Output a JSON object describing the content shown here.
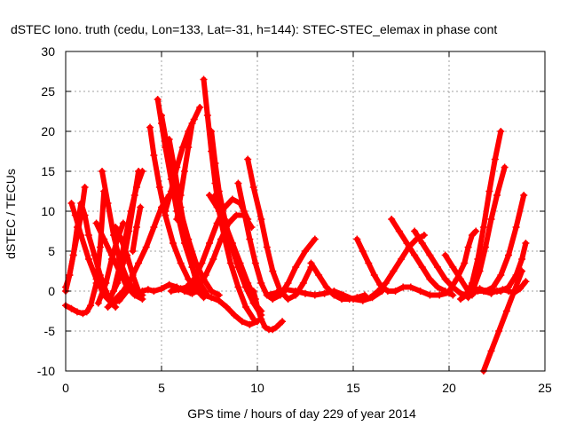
{
  "chart_data": {
    "type": "line",
    "title": "dSTEC Iono. truth (cedu, Lon=133, Lat=-31, h=144): STEC-STEC_elemax in phase cont",
    "xlabel": "GPS time / hours of day 229 of year 2014",
    "ylabel": "dSTEC  / TECUs",
    "xlim": [
      0,
      25
    ],
    "ylim": [
      -10,
      30
    ],
    "xticks": [
      0,
      5,
      10,
      15,
      20,
      25
    ],
    "yticks": [
      -10,
      -5,
      0,
      5,
      10,
      15,
      20,
      25,
      30
    ],
    "grid": true,
    "legend": "none",
    "color": "#ff0000",
    "marker": "plus",
    "series": [
      {
        "x": [
          0.0,
          0.3,
          0.6,
          0.9,
          1.1,
          1.3,
          1.6,
          1.8,
          2.0
        ],
        "y": [
          -1.8,
          -2.2,
          -2.6,
          -2.8,
          -2.6,
          -1.8,
          1.0,
          5.5,
          12.5
        ]
      },
      {
        "x": [
          0.0,
          0.2,
          0.4,
          0.6,
          0.8,
          1.0
        ],
        "y": [
          0.0,
          2.0,
          4.5,
          7.0,
          9.5,
          13.0
        ]
      },
      {
        "x": [
          0.0,
          0.2,
          0.4,
          0.6,
          0.8,
          1.0,
          1.2,
          1.5,
          1.8,
          2.1,
          2.4,
          2.6
        ],
        "y": [
          0.5,
          2.0,
          4.5,
          8.0,
          11.0,
          9.5,
          7.0,
          4.5,
          2.0,
          0.0,
          -1.5,
          -2.0
        ]
      },
      {
        "x": [
          0.3,
          0.5,
          0.8,
          1.2,
          1.6,
          2.0,
          2.4,
          2.8,
          3.2
        ],
        "y": [
          11.0,
          9.5,
          7.0,
          4.0,
          1.5,
          -0.5,
          -1.5,
          -1.2,
          0.0
        ]
      },
      {
        "x": [
          1.6,
          2.0,
          2.4,
          2.8,
          3.2,
          3.6,
          4.0
        ],
        "y": [
          8.5,
          6.5,
          4.5,
          2.5,
          0.5,
          -0.5,
          -1.0
        ]
      },
      {
        "x": [
          1.9,
          2.2,
          2.5,
          2.8,
          3.2,
          3.6,
          4.0
        ],
        "y": [
          15.0,
          11.0,
          7.0,
          4.0,
          1.5,
          0.0,
          -0.5
        ]
      },
      {
        "x": [
          2.6,
          2.9,
          3.2,
          3.5,
          3.8
        ],
        "y": [
          8.0,
          6.5,
          4.5,
          2.0,
          0.0
        ]
      },
      {
        "x": [
          2.2,
          2.6,
          3.0,
          3.4,
          3.8,
          4.2,
          4.6,
          5.0,
          5.4
        ],
        "y": [
          -2.0,
          -1.0,
          0.0,
          1.5,
          3.5,
          5.5,
          8.0,
          10.5,
          12.0
        ]
      },
      {
        "x": [
          1.7,
          2.1,
          2.4,
          2.7,
          3.0
        ],
        "y": [
          -1.5,
          1.0,
          4.0,
          6.5,
          8.5
        ]
      },
      {
        "x": [
          2.5,
          2.8,
          3.1,
          3.4,
          3.7,
          4.0
        ],
        "y": [
          0.0,
          3.0,
          6.5,
          10.0,
          13.0,
          15.0
        ]
      },
      {
        "x": [
          2.3,
          2.7,
          3.0,
          3.3,
          3.6,
          3.8
        ],
        "y": [
          -1.0,
          1.0,
          3.5,
          7.5,
          12.0,
          15.0
        ]
      },
      {
        "x": [
          3.5,
          3.7,
          3.9
        ],
        "y": [
          5.0,
          8.0,
          10.5
        ]
      },
      {
        "x": [
          4.0,
          4.3,
          4.6,
          5.0,
          5.4,
          5.8,
          6.2,
          6.6,
          7.0
        ],
        "y": [
          0.0,
          0.2,
          0.0,
          0.3,
          0.8,
          0.5,
          0.0,
          -0.3,
          0.2
        ]
      },
      {
        "x": [
          4.4,
          4.6,
          4.9,
          5.2,
          5.6,
          6.0,
          6.4,
          6.8,
          7.2
        ],
        "y": [
          20.5,
          17.0,
          13.0,
          9.5,
          6.0,
          3.5,
          1.5,
          0.2,
          -0.8
        ]
      },
      {
        "x": [
          4.8,
          5.0,
          5.2,
          5.5,
          5.8,
          6.2,
          6.6,
          7.0,
          7.4
        ],
        "y": [
          24.0,
          21.0,
          18.0,
          14.0,
          10.0,
          6.0,
          3.0,
          1.0,
          -0.5
        ]
      },
      {
        "x": [
          5.0,
          5.3,
          5.6,
          6.0,
          6.4,
          6.8,
          7.2,
          7.6,
          8.0
        ],
        "y": [
          22.0,
          18.0,
          14.0,
          10.0,
          6.5,
          3.5,
          1.5,
          0.0,
          -0.5
        ]
      },
      {
        "x": [
          5.4,
          5.7,
          6.0,
          6.3,
          6.6,
          6.9,
          7.2
        ],
        "y": [
          19.0,
          15.0,
          10.5,
          6.5,
          3.0,
          0.5,
          -0.5
        ]
      },
      {
        "x": [
          5.2,
          5.5,
          5.8,
          6.1,
          6.4,
          6.7,
          7.0
        ],
        "y": [
          10.0,
          12.5,
          15.5,
          18.0,
          20.0,
          21.5,
          23.0
        ]
      },
      {
        "x": [
          5.8,
          6.0,
          6.2,
          6.4,
          6.6
        ],
        "y": [
          9.0,
          12.0,
          15.0,
          18.0,
          21.0
        ]
      },
      {
        "x": [
          6.0,
          6.4,
          6.8,
          7.2,
          7.6,
          8.0,
          8.4,
          8.8,
          9.2,
          9.6,
          10.0
        ],
        "y": [
          0.3,
          0.5,
          0.0,
          -0.5,
          -0.8,
          -1.2,
          -2.0,
          -3.0,
          -3.8,
          -4.2,
          -3.8
        ]
      },
      {
        "x": [
          5.5,
          5.9,
          6.3,
          6.7,
          7.1,
          7.5,
          7.9,
          8.3,
          8.7,
          9.1,
          9.5
        ],
        "y": [
          0.0,
          0.2,
          0.5,
          1.5,
          3.5,
          6.0,
          8.5,
          10.5,
          11.5,
          11.0,
          9.0
        ]
      },
      {
        "x": [
          6.5,
          6.9,
          7.3,
          7.7,
          8.1,
          8.5,
          8.9,
          9.3,
          9.7
        ],
        "y": [
          -0.2,
          0.5,
          2.0,
          4.0,
          6.5,
          8.5,
          9.5,
          9.5,
          8.0
        ]
      },
      {
        "x": [
          7.2,
          7.4,
          7.6,
          7.8,
          8.0,
          8.3,
          8.6,
          9.0,
          9.4,
          9.8
        ],
        "y": [
          26.5,
          22.0,
          17.5,
          13.5,
          10.0,
          6.5,
          3.5,
          0.5,
          -2.0,
          -3.5
        ]
      },
      {
        "x": [
          7.6,
          7.8,
          8.0,
          8.3,
          8.6,
          9.0,
          9.4,
          9.8,
          10.2
        ],
        "y": [
          20.0,
          16.0,
          12.5,
          9.0,
          6.0,
          3.0,
          0.5,
          -1.5,
          -2.5
        ]
      },
      {
        "x": [
          7.5,
          7.9,
          8.3,
          8.7,
          9.1,
          9.5,
          9.9
        ],
        "y": [
          12.0,
          10.5,
          8.5,
          6.0,
          3.5,
          1.0,
          -1.0
        ]
      },
      {
        "x": [
          7.8,
          8.2,
          8.6,
          9.0,
          9.4,
          9.8,
          10.2
        ],
        "y": [
          12.0,
          9.0,
          6.0,
          3.0,
          0.5,
          -1.5,
          -3.0
        ]
      },
      {
        "x": [
          9.0,
          9.3,
          9.6,
          9.9,
          10.2,
          10.5,
          10.8,
          11.2,
          11.6,
          12.0,
          12.5,
          13.0
        ],
        "y": [
          13.5,
          10.0,
          6.5,
          3.5,
          1.0,
          -0.5,
          -1.0,
          -0.5,
          1.0,
          3.0,
          5.0,
          6.5
        ]
      },
      {
        "x": [
          9.5,
          9.8,
          10.2,
          10.5,
          10.8,
          11.2,
          11.6,
          12.0,
          12.4,
          12.8
        ],
        "y": [
          16.5,
          13.0,
          9.0,
          5.5,
          2.5,
          0.0,
          -1.0,
          -0.5,
          1.0,
          3.0
        ]
      },
      {
        "x": [
          9.8,
          10.0,
          10.2,
          10.4,
          10.6,
          10.8,
          11.0,
          11.3
        ],
        "y": [
          0.0,
          -2.0,
          -3.5,
          -4.5,
          -4.8,
          -4.8,
          -4.5,
          -3.8
        ]
      },
      {
        "x": [
          10.5,
          11.0,
          11.5,
          12.0,
          12.5,
          13.0,
          13.5,
          14.0,
          14.5,
          15.0,
          15.5,
          16.0,
          16.5
        ],
        "y": [
          -0.5,
          -0.2,
          0.2,
          0.0,
          -0.3,
          -0.5,
          -0.3,
          0.0,
          -0.5,
          -1.0,
          -1.2,
          -0.8,
          0.0
        ]
      },
      {
        "x": [
          12.8,
          13.2,
          13.6,
          14.0,
          14.4,
          14.8,
          15.2,
          15.6
        ],
        "y": [
          3.5,
          2.0,
          0.5,
          -0.5,
          -1.0,
          -1.0,
          -0.8,
          -0.5
        ]
      },
      {
        "x": [
          15.2,
          15.5,
          15.8,
          16.1,
          16.4,
          16.8,
          17.2,
          17.6,
          18.0,
          18.5,
          19.0,
          19.5,
          20.0
        ],
        "y": [
          6.5,
          5.0,
          3.5,
          2.0,
          0.8,
          0.0,
          0.0,
          0.5,
          0.5,
          0.0,
          -0.5,
          -0.5,
          -0.2
        ]
      },
      {
        "x": [
          15.5,
          15.9,
          16.3,
          16.7,
          17.1,
          17.5,
          17.9,
          18.3,
          18.7
        ],
        "y": [
          -1.0,
          -0.8,
          0.0,
          1.0,
          2.5,
          4.0,
          5.5,
          6.5,
          7.0
        ]
      },
      {
        "x": [
          17.0,
          17.4,
          17.8,
          18.2,
          18.6,
          19.0,
          19.4,
          19.8,
          20.2
        ],
        "y": [
          9.0,
          7.5,
          6.0,
          4.5,
          3.0,
          1.5,
          0.5,
          0.0,
          -0.5
        ]
      },
      {
        "x": [
          18.2,
          18.6,
          19.0,
          19.4,
          19.8,
          20.2,
          20.6,
          21.0,
          21.4,
          21.8,
          22.2
        ],
        "y": [
          7.5,
          6.0,
          4.5,
          3.0,
          1.5,
          0.5,
          -0.3,
          -0.5,
          0.0,
          0.0,
          -0.3
        ]
      },
      {
        "x": [
          19.8,
          20.2,
          20.6,
          21.0,
          21.2
        ],
        "y": [
          4.5,
          3.0,
          1.5,
          0.0,
          -0.5
        ]
      },
      {
        "x": [
          20.0,
          20.4,
          20.8,
          21.0,
          21.2,
          21.4
        ],
        "y": [
          0.0,
          1.5,
          3.5,
          5.5,
          7.0,
          7.5
        ]
      },
      {
        "x": [
          20.6,
          20.9,
          21.2,
          21.5,
          21.8,
          22.1,
          22.4,
          22.7
        ],
        "y": [
          -1.0,
          -0.5,
          1.0,
          4.0,
          8.0,
          12.5,
          16.5,
          20.0
        ]
      },
      {
        "x": [
          21.0,
          21.3,
          21.6,
          21.9,
          22.2,
          22.5,
          22.9
        ],
        "y": [
          -0.8,
          0.5,
          2.5,
          5.5,
          9.0,
          12.0,
          15.5
        ]
      },
      {
        "x": [
          21.3,
          21.6,
          21.9,
          22.2,
          22.5,
          22.8,
          23.1,
          23.4,
          23.7,
          24.0
        ],
        "y": [
          0.0,
          0.3,
          0.0,
          -0.2,
          0.0,
          0.2,
          0.0,
          -0.2,
          0.3,
          1.2
        ]
      },
      {
        "x": [
          21.5,
          21.9,
          22.3,
          22.7,
          23.1,
          23.5,
          23.9
        ],
        "y": [
          0.0,
          0.0,
          0.5,
          2.0,
          4.5,
          8.0,
          12.0
        ]
      },
      {
        "x": [
          22.3,
          22.7,
          23.1,
          23.5,
          23.8,
          24.0
        ],
        "y": [
          0.0,
          0.0,
          0.5,
          2.0,
          4.0,
          6.0
        ]
      },
      {
        "x": [
          21.8,
          22.2,
          22.6,
          23.0,
          23.4,
          23.8
        ],
        "y": [
          -10.0,
          -7.5,
          -5.0,
          -2.5,
          0.0,
          2.5
        ]
      }
    ]
  }
}
